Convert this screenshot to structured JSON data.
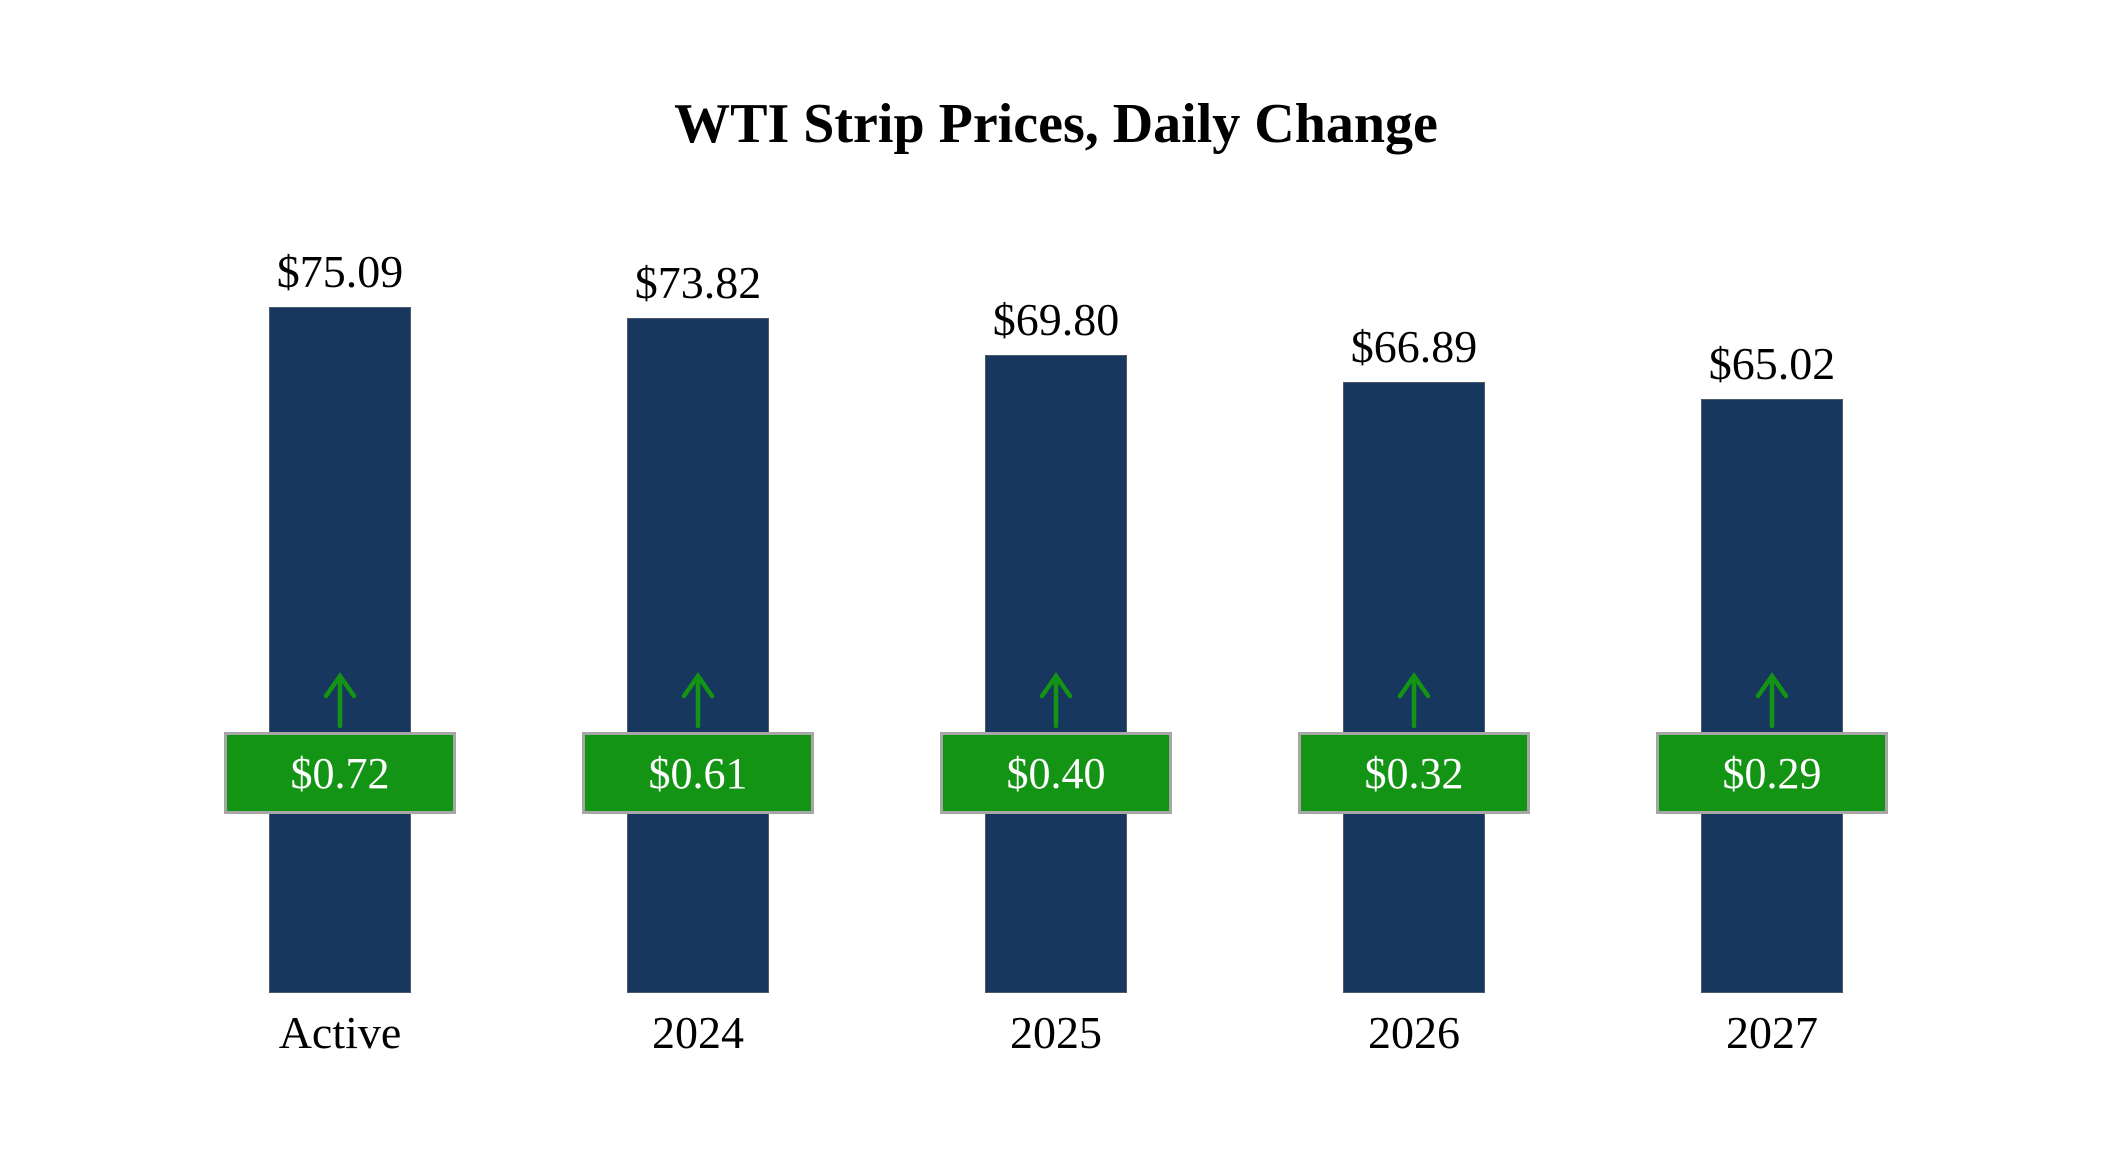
{
  "page": {
    "background": "#FFFFFF"
  },
  "chart_data": {
    "type": "bar",
    "title": "WTI Strip Prices, Daily Change",
    "categories": [
      "Active",
      "2024",
      "2025",
      "2026",
      "2027"
    ],
    "values": [
      75.09,
      73.82,
      69.8,
      66.89,
      65.02
    ],
    "value_labels": [
      "$75.09",
      "$73.82",
      "$69.80",
      "$66.89",
      "$65.02"
    ],
    "changes": [
      0.72,
      0.61,
      0.4,
      0.32,
      0.29
    ],
    "change_labels": [
      "$0.72",
      "$0.61",
      "$0.40",
      "$0.32",
      "$0.29"
    ],
    "change_direction": "up",
    "xlabel": "",
    "ylabel": "",
    "ylim": [
      0,
      80
    ],
    "grid": false,
    "legend": false,
    "colors": {
      "bar": "#17375E",
      "badge": "#149414",
      "badge_border": "#A6A6A6",
      "arrow": "#149414",
      "badge_text": "#FFFFFF",
      "text": "#000000"
    }
  }
}
